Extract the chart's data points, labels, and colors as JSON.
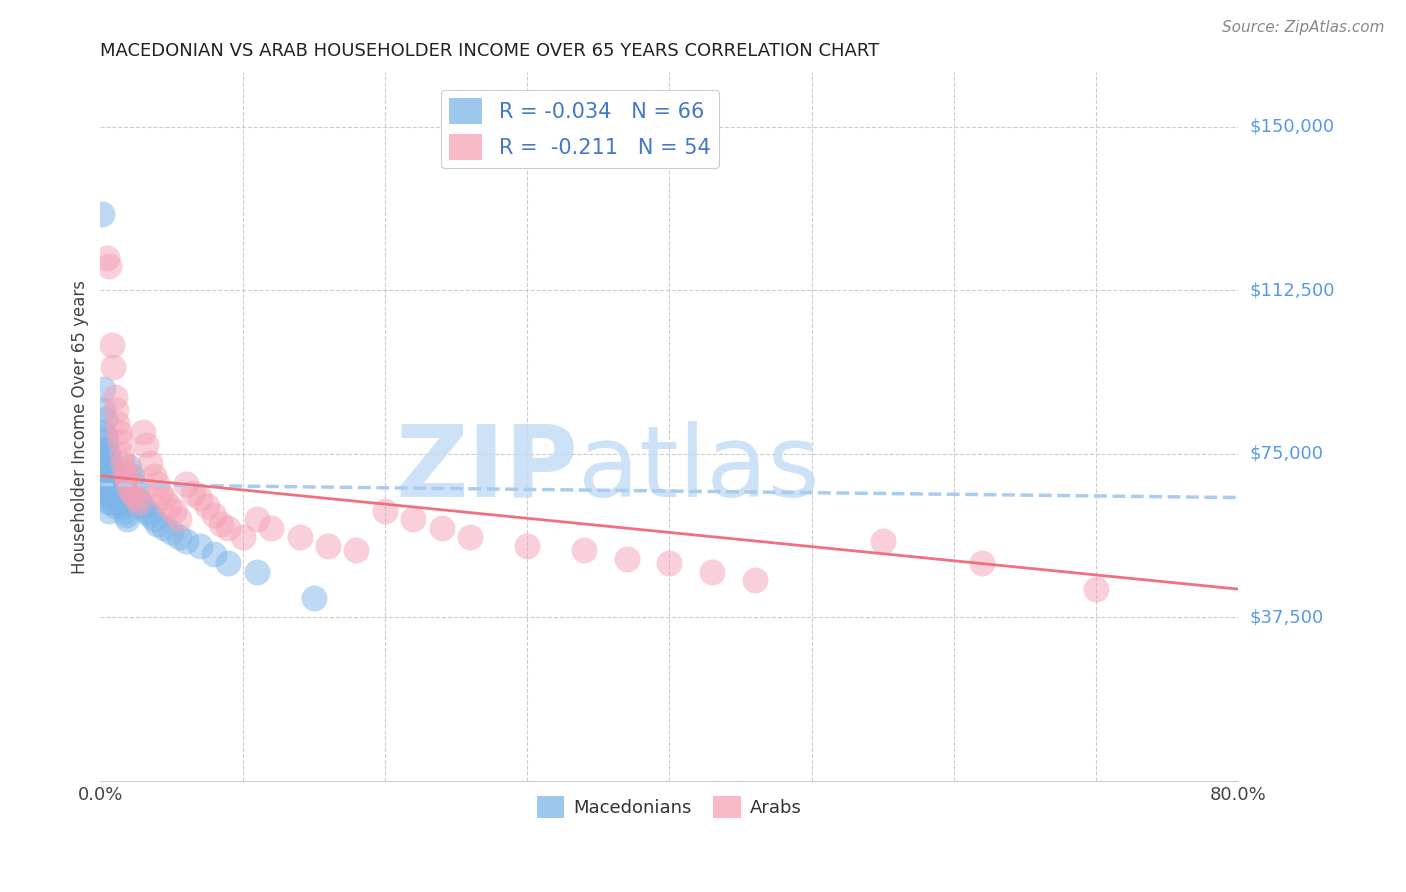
{
  "title": "MACEDONIAN VS ARAB HOUSEHOLDER INCOME OVER 65 YEARS CORRELATION CHART",
  "source": "Source: ZipAtlas.com",
  "ylabel": "Householder Income Over 65 years",
  "xlim": [
    0.0,
    0.8
  ],
  "ylim": [
    0,
    162500
  ],
  "yticks": [
    37500,
    75000,
    112500,
    150000
  ],
  "ytick_labels": [
    "$37,500",
    "$75,000",
    "$112,500",
    "$150,000"
  ],
  "mac_color": "#7EB5E8",
  "arab_color": "#F5A0B5",
  "mac_line_color": "#AACCEE",
  "arab_line_color": "#F07080",
  "legend_mac_label": "R = -0.034   N = 66",
  "legend_arab_label": "R =  -0.211   N = 54",
  "mac_x": [
    0.001,
    0.002,
    0.002,
    0.002,
    0.002,
    0.003,
    0.003,
    0.003,
    0.003,
    0.004,
    0.004,
    0.004,
    0.004,
    0.004,
    0.005,
    0.005,
    0.005,
    0.005,
    0.006,
    0.006,
    0.006,
    0.006,
    0.006,
    0.006,
    0.007,
    0.007,
    0.007,
    0.007,
    0.008,
    0.008,
    0.008,
    0.009,
    0.009,
    0.01,
    0.01,
    0.01,
    0.011,
    0.011,
    0.012,
    0.012,
    0.013,
    0.014,
    0.015,
    0.016,
    0.017,
    0.018,
    0.019,
    0.02,
    0.022,
    0.024,
    0.026,
    0.028,
    0.03,
    0.032,
    0.035,
    0.038,
    0.04,
    0.045,
    0.05,
    0.055,
    0.06,
    0.07,
    0.08,
    0.09,
    0.11,
    0.15
  ],
  "mac_y": [
    130000,
    90000,
    85000,
    80000,
    75000,
    83000,
    79000,
    76000,
    72000,
    78000,
    75000,
    72000,
    69000,
    66000,
    76000,
    73000,
    70000,
    67000,
    74000,
    71000,
    68000,
    66000,
    64000,
    62000,
    72000,
    70000,
    67000,
    64000,
    71000,
    68000,
    65000,
    70000,
    67000,
    69000,
    66000,
    63000,
    68000,
    65000,
    67000,
    64000,
    66000,
    65000,
    64000,
    63000,
    62000,
    61000,
    60000,
    72000,
    70000,
    68000,
    66000,
    64000,
    63000,
    62000,
    61000,
    60000,
    59000,
    58000,
    57000,
    56000,
    55000,
    54000,
    52000,
    50000,
    48000,
    42000
  ],
  "arab_x": [
    0.005,
    0.006,
    0.008,
    0.009,
    0.01,
    0.011,
    0.012,
    0.013,
    0.014,
    0.015,
    0.016,
    0.017,
    0.018,
    0.019,
    0.02,
    0.022,
    0.025,
    0.027,
    0.03,
    0.032,
    0.035,
    0.038,
    0.04,
    0.042,
    0.045,
    0.048,
    0.052,
    0.055,
    0.06,
    0.065,
    0.07,
    0.075,
    0.08,
    0.085,
    0.09,
    0.1,
    0.11,
    0.12,
    0.14,
    0.16,
    0.18,
    0.2,
    0.22,
    0.24,
    0.26,
    0.3,
    0.34,
    0.37,
    0.4,
    0.43,
    0.46,
    0.55,
    0.62,
    0.7
  ],
  "arab_y": [
    120000,
    118000,
    100000,
    95000,
    88000,
    85000,
    82000,
    80000,
    78000,
    75000,
    73000,
    71000,
    70000,
    69000,
    67000,
    66000,
    65000,
    64000,
    80000,
    77000,
    73000,
    70000,
    68000,
    66000,
    65000,
    63000,
    62000,
    60000,
    68000,
    66000,
    65000,
    63000,
    61000,
    59000,
    58000,
    56000,
    60000,
    58000,
    56000,
    54000,
    53000,
    62000,
    60000,
    58000,
    56000,
    54000,
    53000,
    51000,
    50000,
    48000,
    46000,
    55000,
    50000,
    44000
  ]
}
